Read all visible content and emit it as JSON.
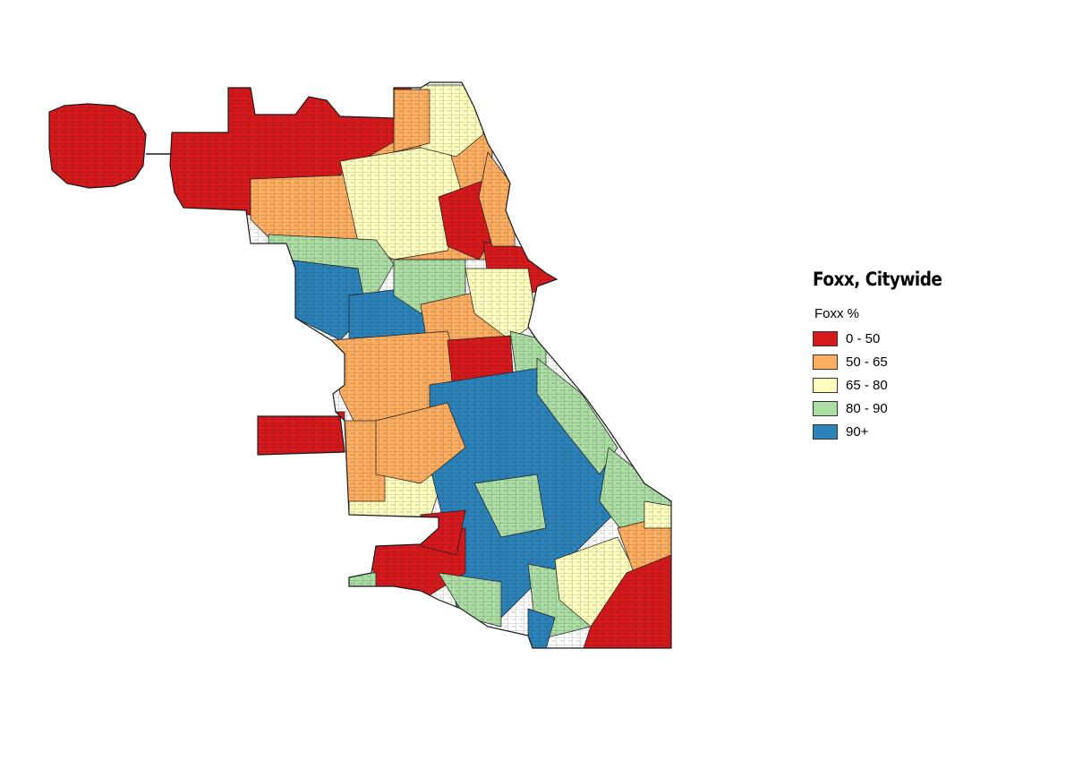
{
  "legend": {
    "title": "Foxx, Citywide",
    "subtitle": "Foxx %",
    "items": [
      {
        "label": "0 - 50",
        "color": "#d7191c"
      },
      {
        "label": "50 - 65",
        "color": "#fdae61"
      },
      {
        "label": "65 - 80",
        "color": "#ffffbf"
      },
      {
        "label": "80 - 90",
        "color": "#abdda4"
      },
      {
        "label": "90+",
        "color": "#2b83ba"
      }
    ]
  },
  "map": {
    "outline_color": "#1a1a1a"
  }
}
